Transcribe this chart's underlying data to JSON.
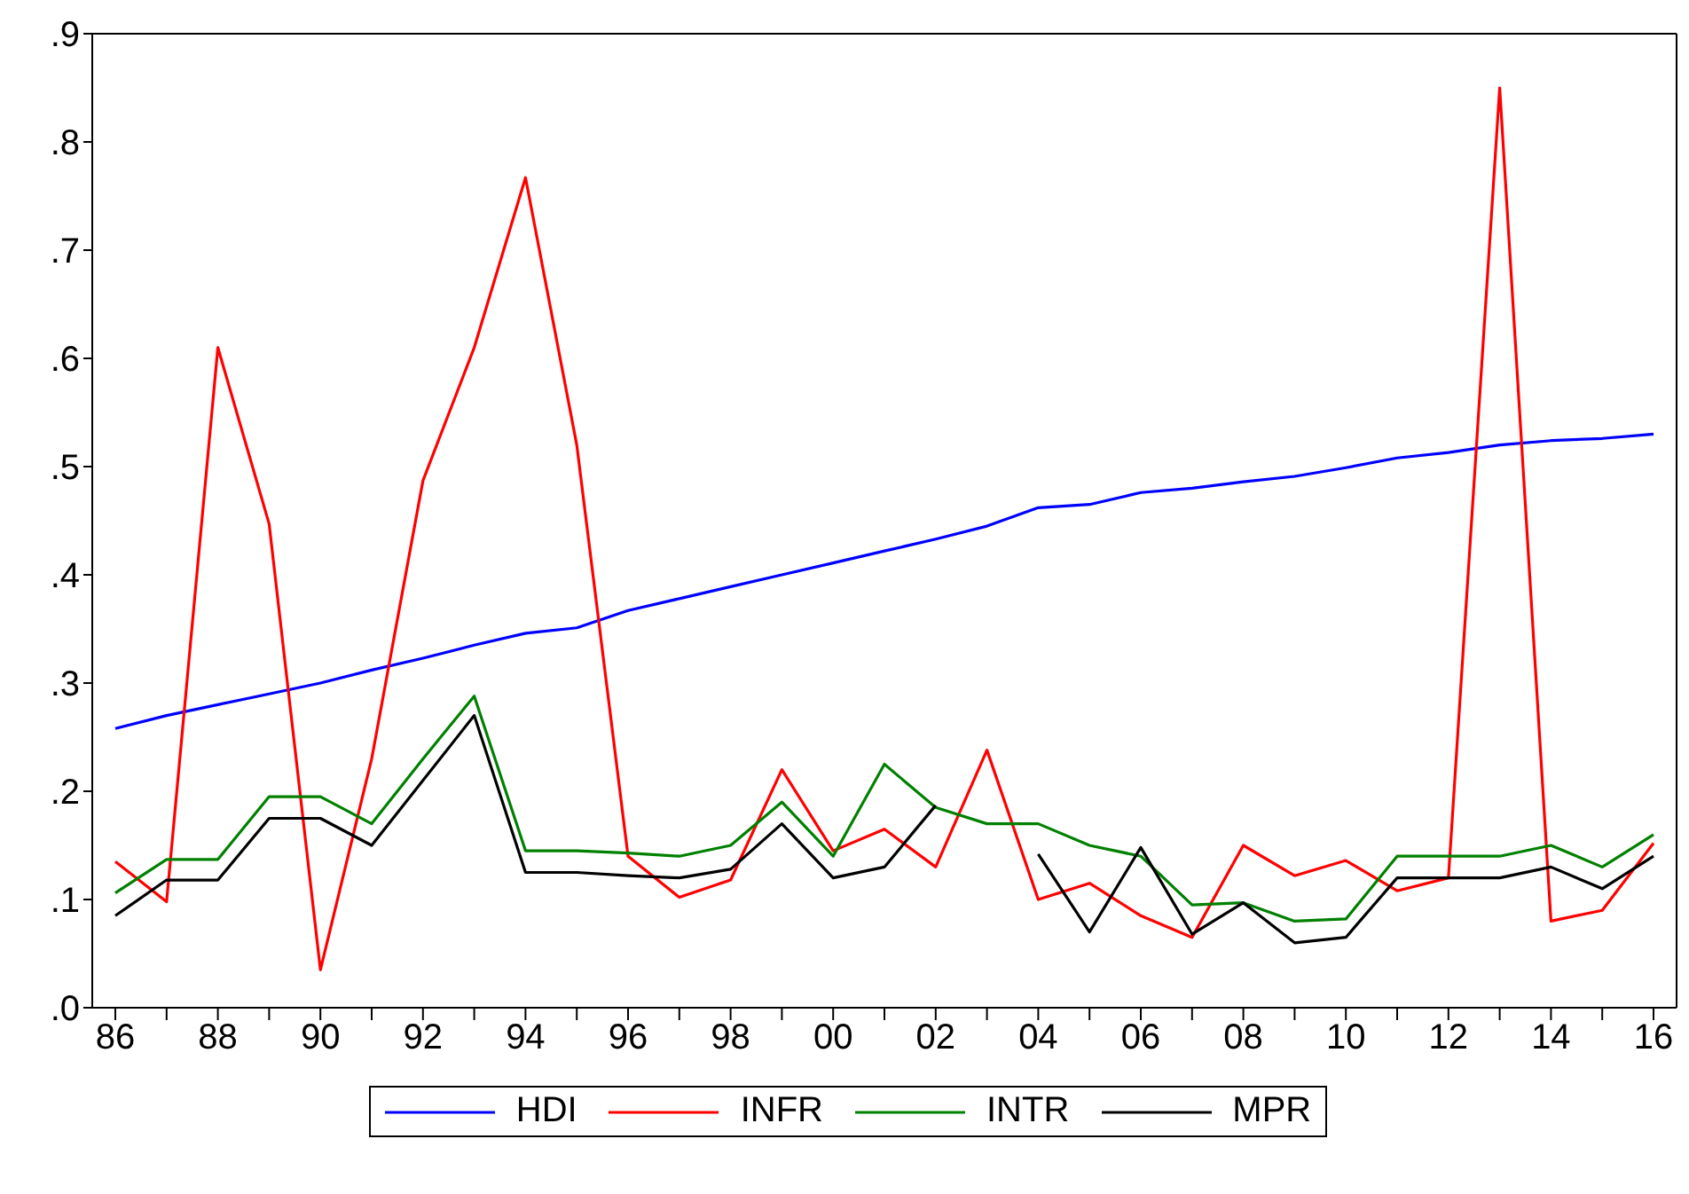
{
  "chart_data": {
    "type": "line",
    "categories": [
      "86",
      null,
      "88",
      null,
      "90",
      null,
      "92",
      null,
      "94",
      null,
      "96",
      null,
      "98",
      null,
      "00",
      null,
      "02",
      null,
      "04",
      null,
      "06",
      null,
      "08",
      null,
      "10",
      null,
      "12",
      null,
      "14",
      null,
      "16"
    ],
    "series": [
      {
        "name": "HDI",
        "color": "#0000ff",
        "values": [
          0.258,
          0.27,
          0.28,
          0.29,
          0.3,
          0.312,
          0.323,
          0.335,
          0.346,
          0.351,
          0.367,
          0.378,
          0.389,
          0.4,
          0.411,
          0.422,
          0.433,
          0.445,
          0.462,
          0.465,
          0.476,
          0.48,
          0.486,
          0.491,
          0.499,
          0.508,
          0.513,
          0.52,
          0.524,
          0.526,
          0.53
        ]
      },
      {
        "name": "INFR",
        "color": "#ff0000",
        "values": [
          0.135,
          0.098,
          0.61,
          0.447,
          0.035,
          0.23,
          0.487,
          0.61,
          0.767,
          0.52,
          0.14,
          0.102,
          0.118,
          0.22,
          0.145,
          0.165,
          0.13,
          0.238,
          0.1,
          0.115,
          0.085,
          0.065,
          0.15,
          0.122,
          0.136,
          0.108,
          0.12,
          0.85,
          0.08,
          0.09,
          0.152
        ]
      },
      {
        "name": "INTR",
        "color": "#008000",
        "values": [
          0.106,
          0.137,
          0.137,
          0.195,
          0.195,
          0.17,
          0.23,
          0.288,
          0.145,
          0.145,
          0.143,
          0.14,
          0.15,
          0.19,
          0.14,
          0.225,
          0.185,
          0.17,
          0.17,
          0.15,
          0.14,
          0.095,
          0.097,
          0.08,
          0.082,
          0.14,
          0.14,
          0.14,
          0.15,
          0.13,
          0.16
        ]
      },
      {
        "name": "MPR",
        "color": "#000000",
        "values": [
          0.085,
          0.118,
          0.118,
          0.175,
          0.175,
          0.15,
          0.21,
          0.27,
          0.125,
          0.125,
          0.122,
          0.12,
          0.128,
          0.17,
          0.12,
          0.13,
          0.187,
          null,
          0.142,
          0.07,
          0.148,
          0.068,
          0.097,
          0.06,
          0.065,
          0.12,
          0.12,
          0.12,
          0.13,
          0.11,
          0.14
        ]
      }
    ],
    "ylim": [
      0,
      0.9
    ],
    "yticks": [
      {
        "value": 0,
        "label": ".0"
      },
      {
        "value": 0.1,
        "label": ".1"
      },
      {
        "value": 0.2,
        "label": ".2"
      },
      {
        "value": 0.3,
        "label": ".3"
      },
      {
        "value": 0.4,
        "label": ".4"
      },
      {
        "value": 0.5,
        "label": ".5"
      },
      {
        "value": 0.6,
        "label": ".6"
      },
      {
        "value": 0.7,
        "label": ".7"
      },
      {
        "value": 0.8,
        "label": ".8"
      },
      {
        "value": 0.9,
        "label": ".9"
      }
    ],
    "grid": false,
    "legend": "bottom",
    "marker": "none",
    "line_style": "solid"
  }
}
